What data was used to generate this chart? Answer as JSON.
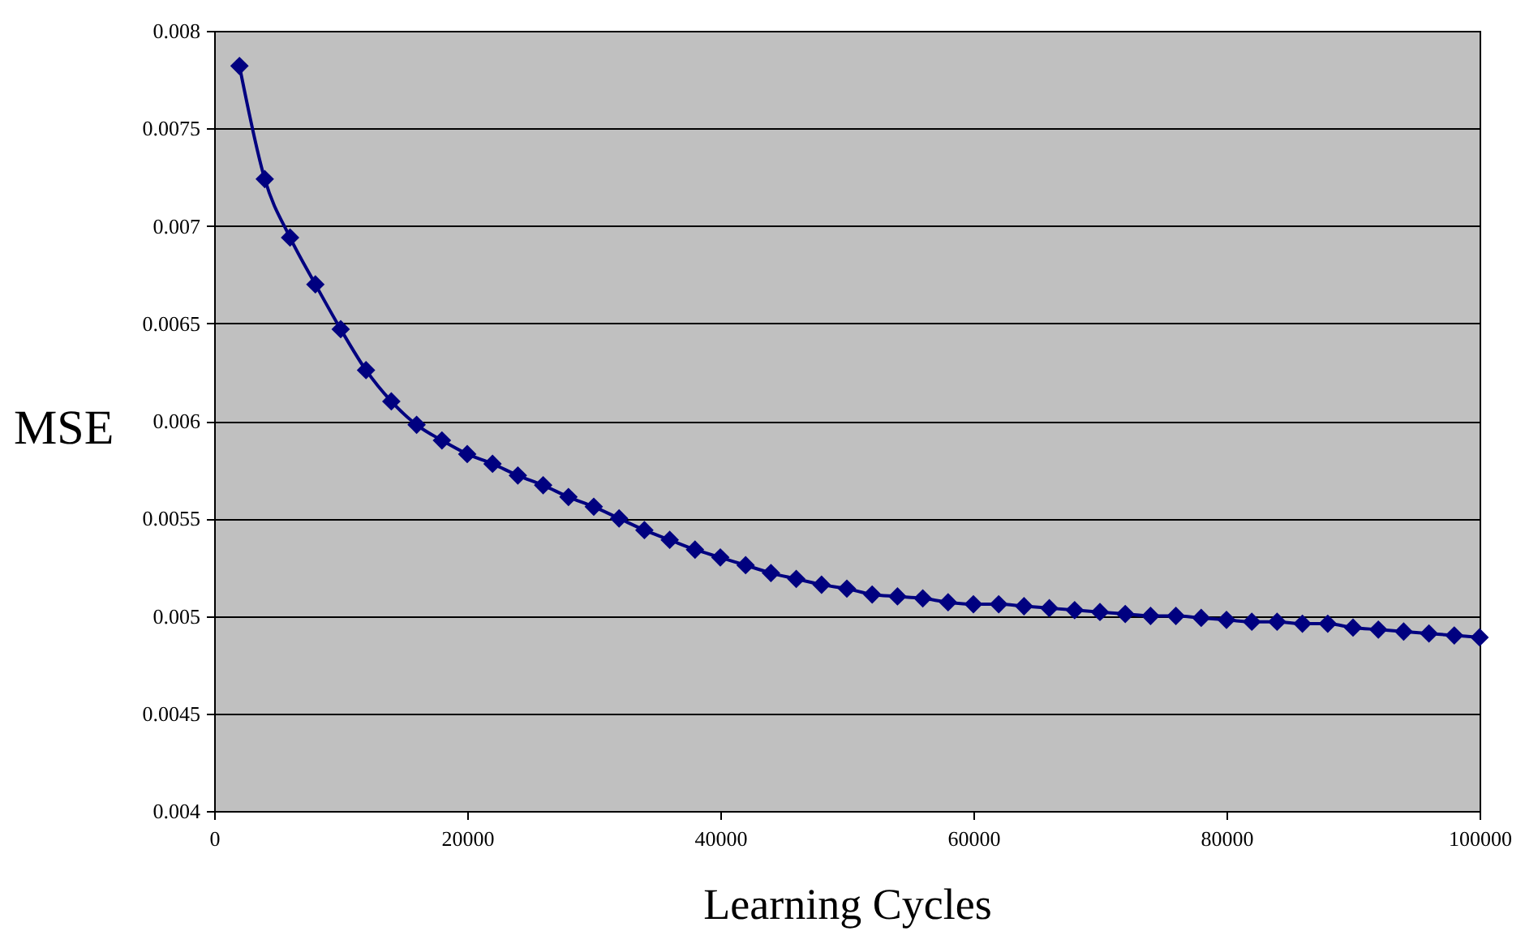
{
  "chart_data": {
    "type": "line",
    "xlabel": "Learning Cycles",
    "ylabel": "MSE",
    "x": [
      2000,
      4000,
      6000,
      8000,
      10000,
      12000,
      14000,
      16000,
      18000,
      20000,
      22000,
      24000,
      26000,
      28000,
      30000,
      32000,
      34000,
      36000,
      38000,
      40000,
      42000,
      44000,
      46000,
      48000,
      50000,
      52000,
      54000,
      56000,
      58000,
      60000,
      62000,
      64000,
      66000,
      68000,
      70000,
      72000,
      74000,
      76000,
      78000,
      80000,
      82000,
      84000,
      86000,
      88000,
      90000,
      92000,
      94000,
      96000,
      98000,
      100000
    ],
    "series": [
      {
        "color": "#000080",
        "values": [
          0.00782,
          0.00724,
          0.00694,
          0.0067,
          0.00647,
          0.00626,
          0.0061,
          0.00598,
          0.0059,
          0.00583,
          0.00578,
          0.00572,
          0.00567,
          0.00561,
          0.00556,
          0.0055,
          0.00544,
          0.00539,
          0.00534,
          0.0053,
          0.00526,
          0.00522,
          0.00519,
          0.00516,
          0.00514,
          0.00511,
          0.0051,
          0.00509,
          0.00507,
          0.00506,
          0.00506,
          0.00505,
          0.00504,
          0.00503,
          0.00502,
          0.00501,
          0.005,
          0.005,
          0.00499,
          0.00498,
          0.00497,
          0.00497,
          0.00496,
          0.00496,
          0.00494,
          0.00493,
          0.00492,
          0.00491,
          0.0049,
          0.00489
        ]
      }
    ],
    "xlim": [
      0,
      100000
    ],
    "xticks": [
      0,
      20000,
      40000,
      60000,
      80000,
      100000
    ],
    "ylim": [
      0.004,
      0.008
    ],
    "yticks": [
      0.004,
      0.0045,
      0.005,
      0.0055,
      0.006,
      0.0065,
      0.007,
      0.0075,
      0.008
    ],
    "grid": "y",
    "marker": "diamond",
    "line_style": "solid"
  }
}
